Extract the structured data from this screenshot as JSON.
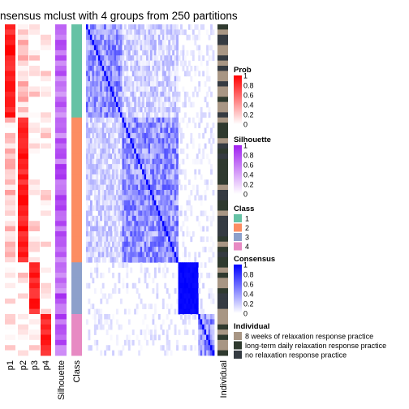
{
  "title": "nsensus mclust with 4 groups from 250 partitions",
  "chart_data": {
    "type": "heatmap",
    "title": "nsensus mclust with 4 groups from 250 partitions",
    "n_samples": 64,
    "column_labels": [
      "p1",
      "p2",
      "p3",
      "p4",
      "Silhouette",
      "Class",
      "Individual"
    ],
    "group_sizes": [
      18,
      28,
      10,
      8
    ],
    "legends": [
      {
        "title": "Prob",
        "ticks": [
          "1",
          "0.8",
          "0.6",
          "0.4",
          "0.2",
          "0"
        ],
        "colors": [
          "#ff0000",
          "#ffffff"
        ]
      },
      {
        "title": "Silhouette",
        "ticks": [
          "1",
          "0.8",
          "0.6",
          "0.4",
          "0.2",
          "0"
        ],
        "colors": [
          "#a020f0",
          "#ffffff"
        ]
      },
      {
        "title": "Class",
        "items": [
          {
            "label": "1",
            "color": "#66c2a5"
          },
          {
            "label": "2",
            "color": "#fc8d62"
          },
          {
            "label": "3",
            "color": "#8da0cb"
          },
          {
            "label": "4",
            "color": "#e78ac3"
          }
        ]
      },
      {
        "title": "Consensus",
        "ticks": [
          "1",
          "0.8",
          "0.6",
          "0.4",
          "0.2",
          "0"
        ],
        "colors": [
          "#0000ff",
          "#ffffff"
        ]
      },
      {
        "title": "Individual",
        "items": [
          {
            "label": "8 weeks of relaxation response practice",
            "color": "#a89684"
          },
          {
            "label": "long-term daily relaxation response practice",
            "color": "#2f3a2f"
          },
          {
            "label": "no relaxation response practice",
            "color": "#353b42"
          }
        ]
      }
    ],
    "value_range": [
      0,
      1
    ]
  },
  "colors": {
    "prob_high": "#ff0000",
    "silhouette_high": "#a020f0",
    "consensus_high": "#0000ff",
    "low": "#ffffff"
  }
}
